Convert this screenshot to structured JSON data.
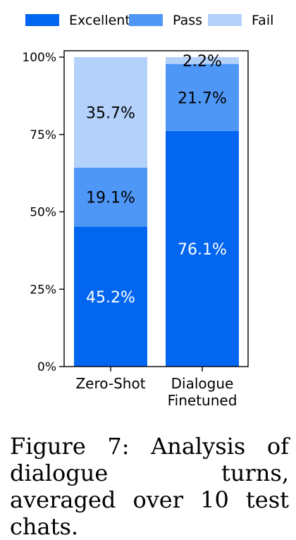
{
  "chart_data": {
    "type": "bar",
    "stacked": true,
    "categories": [
      "Zero-Shot",
      "Dialogue Finetuned"
    ],
    "series": [
      {
        "name": "Excellent",
        "values": [
          45.2,
          76.1
        ],
        "labels": [
          "45.2%",
          "76.1%"
        ]
      },
      {
        "name": "Pass",
        "values": [
          19.1,
          21.7
        ],
        "labels": [
          "19.1%",
          "21.7%"
        ]
      },
      {
        "name": "Fail",
        "values": [
          35.7,
          2.2
        ],
        "labels": [
          "35.7%",
          "2.2%"
        ]
      }
    ],
    "colors": [
      "#0266f1",
      "#4f97f7",
      "#b3d1fb"
    ],
    "label_colors": [
      "#ffffff",
      "#000000",
      "#000000"
    ],
    "ylim": [
      0,
      100
    ],
    "y_ticks": [
      0,
      25,
      50,
      75,
      100
    ],
    "y_tick_labels": [
      "0%",
      "25%",
      "50%",
      "75%",
      "100%"
    ],
    "x_tick_labels": [
      [
        "Zero-Shot"
      ],
      [
        "Dialogue",
        "Finetuned"
      ]
    ],
    "legend_placement": "top",
    "grid": false
  },
  "caption": "Figure 7: Analysis of dialogue turns, averaged over 10 test chats."
}
